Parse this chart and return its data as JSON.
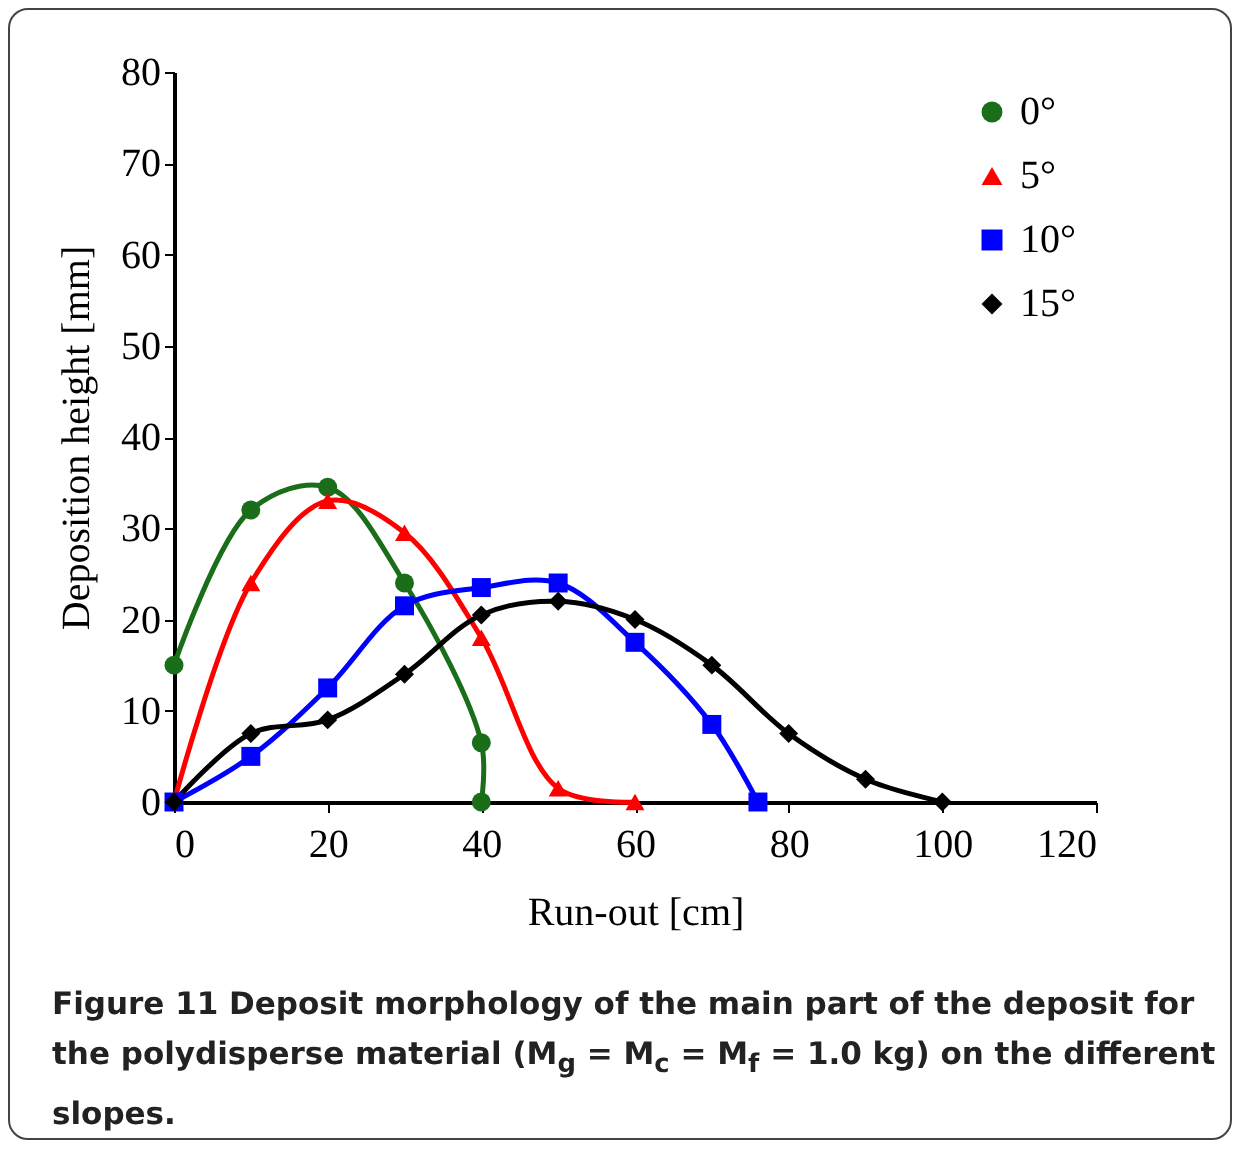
{
  "chart_data": {
    "type": "line",
    "xlabel": "Run-out [cm]",
    "ylabel": "Deposition height [mm]",
    "xlim": [
      0,
      120
    ],
    "xticks": [
      0,
      20,
      40,
      60,
      80,
      100,
      120
    ],
    "ylim": [
      0,
      80
    ],
    "yticks": [
      0,
      10,
      20,
      30,
      40,
      50,
      60,
      70,
      80
    ],
    "grid": false,
    "legend": "top right",
    "line_style": "solid",
    "series": [
      {
        "name": "0°",
        "color": "#1a6e1a",
        "marker": "circle",
        "x": [
          0,
          10,
          20,
          30,
          40,
          40
        ],
        "values": [
          15,
          32,
          34.5,
          24,
          6.5,
          0
        ]
      },
      {
        "name": "5°",
        "color": "#ff0000",
        "marker": "triangle",
        "x": [
          0,
          10,
          20,
          30,
          40,
          50,
          60
        ],
        "values": [
          0,
          24,
          33,
          29.5,
          18,
          1.5,
          0
        ]
      },
      {
        "name": "10°",
        "color": "#0000ff",
        "marker": "square",
        "x": [
          0,
          10,
          20,
          30,
          40,
          50,
          60,
          70,
          76
        ],
        "values": [
          0,
          5,
          12.5,
          21.5,
          23.5,
          24,
          17.5,
          8.5,
          0
        ]
      },
      {
        "name": "15°",
        "color": "#000000",
        "marker": "diamond",
        "x": [
          0,
          10,
          20,
          30,
          40,
          50,
          60,
          70,
          80,
          90,
          100
        ],
        "values": [
          0,
          7.5,
          9,
          14,
          20.5,
          22,
          20,
          15,
          7.5,
          2.5,
          0
        ]
      }
    ],
    "annotations": [
      "Figure 11 Deposit morphology of the main part of the deposit for the polydisperse material (M$_{g}$ = M$_{c}$ = M$_{f}$ = 1.0 kg) on the different slopes."
    ]
  }
}
